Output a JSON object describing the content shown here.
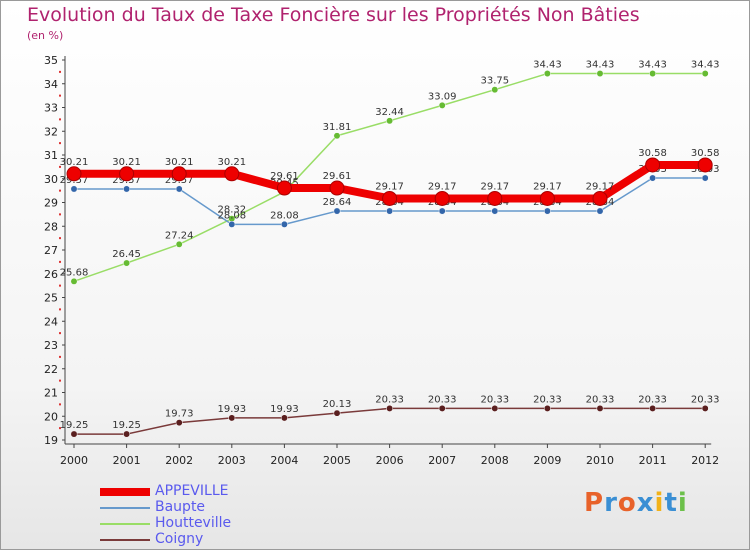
{
  "title": "Evolution du Taux de Taxe Foncière sur les Propriétés Non Bâties",
  "subtitle": "(en %)",
  "logo": "Proxiti",
  "colors": {
    "title": "#b0226e",
    "legend_text": "#5a5aee",
    "logo_letters": [
      "#e8622a",
      "#3a8fd4",
      "#e8622a",
      "#3a8fd4",
      "#f2b21a",
      "#3a8fd4",
      "#6cc04a"
    ]
  },
  "chart_data": {
    "type": "line",
    "x": [
      "2000",
      "2001",
      "2002",
      "2003",
      "2004",
      "2005",
      "2006",
      "2007",
      "2008",
      "2009",
      "2010",
      "2011",
      "2012"
    ],
    "ylim": [
      19,
      35
    ],
    "yticks": [
      19,
      20,
      21,
      22,
      23,
      24,
      25,
      26,
      27,
      28,
      29,
      30,
      31,
      32,
      33,
      34,
      35
    ],
    "grid": false,
    "legend_position": "bottom-left",
    "series": [
      {
        "name": "Houtteville",
        "color": "#99dd66",
        "dot": "#66bb33",
        "values": [
          25.68,
          26.45,
          27.24,
          28.32,
          29.45,
          31.81,
          32.44,
          33.09,
          33.75,
          34.43,
          34.43,
          34.43,
          34.43
        ],
        "labels": [
          "25.68",
          "26.45",
          "27.24",
          "28.32",
          "29.45",
          "31.81",
          "32.44",
          "33.09",
          "33.75",
          "34.43",
          "34.43",
          "34.43",
          "34.43"
        ]
      },
      {
        "name": "Baupte",
        "color": "#6699cc",
        "dot": "#3366aa",
        "values": [
          29.57,
          29.57,
          29.57,
          28.08,
          28.08,
          28.64,
          28.64,
          28.64,
          28.64,
          28.64,
          28.64,
          30.03,
          30.03
        ],
        "labels": [
          "29.57",
          "29.57",
          "29.57",
          "28.08",
          "28.08",
          "28.64",
          "28.64",
          "28.64",
          "28.64",
          "28.64",
          "28.64",
          "30.03",
          "30.03"
        ]
      },
      {
        "name": "Coigny",
        "color": "#7a3a3a",
        "dot": "#5a1f1f",
        "values": [
          19.25,
          19.25,
          19.73,
          19.93,
          19.93,
          20.13,
          20.33,
          20.33,
          20.33,
          20.33,
          20.33,
          20.33,
          20.33
        ],
        "labels": [
          "19.25",
          "19.25",
          "19.73",
          "19.93",
          "19.93",
          "20.13",
          "20.33",
          "20.33",
          "20.33",
          "20.33",
          "20.33",
          "20.33",
          "20.33"
        ]
      },
      {
        "name": "APPEVILLE",
        "color": "#ee0000",
        "dot": "#ee0000",
        "bold": true,
        "values": [
          30.21,
          30.21,
          30.21,
          30.21,
          29.61,
          29.61,
          29.17,
          29.17,
          29.17,
          29.17,
          29.17,
          30.58,
          30.58
        ],
        "labels": [
          "30.21",
          "30.21",
          "30.21",
          "30.21",
          "29.61",
          "29.61",
          "29.17",
          "29.17",
          "29.17",
          "29.17",
          "29.17",
          "30.58",
          "30.58"
        ]
      }
    ]
  },
  "legend_order": [
    "APPEVILLE",
    "Baupte",
    "Houtteville",
    "Coigny"
  ]
}
